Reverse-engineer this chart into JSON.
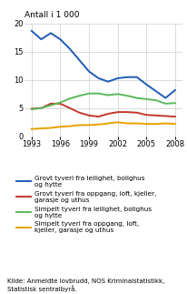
{
  "years": [
    1993,
    1994,
    1995,
    1996,
    1997,
    1998,
    1999,
    2000,
    2001,
    2002,
    2003,
    2004,
    2005,
    2006,
    2007,
    2008
  ],
  "blue": [
    18.7,
    17.2,
    18.3,
    17.2,
    15.5,
    13.5,
    11.5,
    10.3,
    9.7,
    10.3,
    10.5,
    10.5,
    9.2,
    8.0,
    6.8,
    8.2
  ],
  "red": [
    4.9,
    5.0,
    5.8,
    5.8,
    5.0,
    4.2,
    3.7,
    3.5,
    4.0,
    4.3,
    4.3,
    4.2,
    3.8,
    3.7,
    3.6,
    3.5
  ],
  "green": [
    4.8,
    5.0,
    5.5,
    6.0,
    6.7,
    7.2,
    7.6,
    7.6,
    7.3,
    7.5,
    7.2,
    6.8,
    6.6,
    6.4,
    5.8,
    5.9
  ],
  "orange": [
    1.3,
    1.4,
    1.5,
    1.7,
    1.8,
    2.0,
    2.0,
    2.1,
    2.3,
    2.5,
    2.3,
    2.3,
    2.2,
    2.2,
    2.3,
    2.2
  ],
  "blue_color": "#1f5bb5",
  "red_color": "#c0392b",
  "green_color": "#5cb85c",
  "orange_color": "#e8a000",
  "top_label": "Antall i 1 000",
  "ylim": [
    0,
    20
  ],
  "yticks": [
    0,
    5,
    10,
    15,
    20
  ],
  "xticks": [
    1993,
    1996,
    1999,
    2002,
    2005,
    2008
  ],
  "legend_blue": "Grovt tyveri fra leilighet, bolighus\nog hytte",
  "legend_red": "Grovt tyveri fra oppgang, loft, kjeller,\ngarasje og uthus",
  "legend_green": "Simpelt tyveri fra leilighet, bolighus\nog hytte",
  "legend_orange": "Simpelt tyveri fra oppgang, loft,\nkjeller, garasje og uthus",
  "source": "Kilde: Anmeldte lovbrudd, NOS Kriminalstatistikk,\nStatistisk sentralbyrå.",
  "line_width": 1.4
}
